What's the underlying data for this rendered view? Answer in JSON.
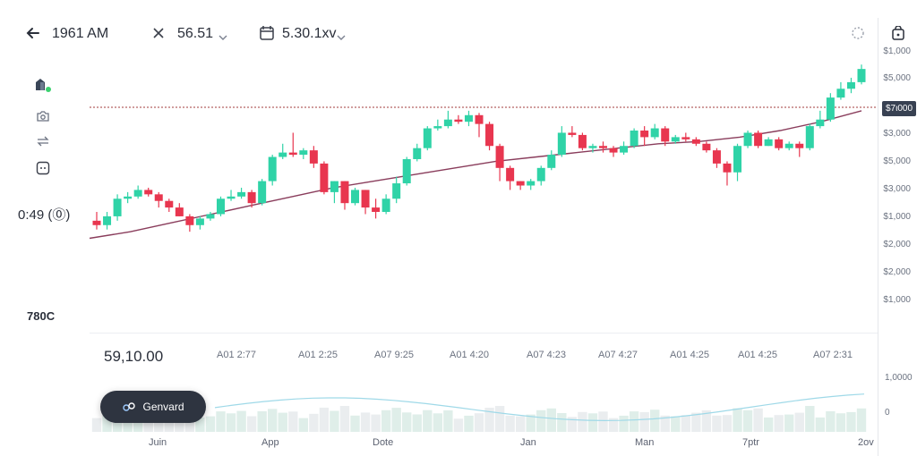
{
  "header": {
    "back_icon": "arrow-left-icon",
    "time": "1961 AM",
    "close_icon": "close-icon",
    "value": "56.51",
    "calendar_icon": "calendar-icon",
    "range": "5.30.1xv",
    "chevron_icon": "chevron-down-icon",
    "bag_icon": "bag-icon",
    "loading_icon": "spinner-icon"
  },
  "sidebar": {
    "icons": [
      "chart-icon",
      "camera-icon",
      "swap-icon",
      "square-icon"
    ],
    "timer": "0:49 (⓪)",
    "bottom_label": "780C"
  },
  "chart": {
    "reference_label": "$7ι000",
    "price_labels": [
      "$1,000",
      "$5,000",
      "$3,000",
      "$5,000",
      "$3,000",
      "$1,000",
      "$2,000",
      "$2,000",
      "$1,000"
    ],
    "summary_value": "59,10.00",
    "time_labels": [
      "A01 2:77",
      "A01 2:25",
      "A07 9:25",
      "A01 4:20",
      "A07 4:23",
      "A07 4:27",
      "A01 4:25",
      "A01 4:25",
      "A07 2:31"
    ],
    "volume_labels": [
      "1,0000",
      "0"
    ],
    "month_labels": [
      "Juin",
      "App",
      "Dote",
      "Jan",
      "Man",
      "7ptr",
      "2ov"
    ],
    "colors": {
      "up": "#2fd3a7",
      "down": "#e8364f",
      "ma": "#8a3d5c",
      "reference": "#a23b3b"
    }
  },
  "chart_data": {
    "type": "candlestick",
    "candles": [
      [
        2.3,
        2.2,
        2.5,
        2.1
      ],
      [
        2.2,
        2.4,
        2.5,
        2.1
      ],
      [
        2.4,
        2.8,
        2.9,
        2.3
      ],
      [
        2.8,
        2.85,
        2.95,
        2.7
      ],
      [
        2.85,
        3.0,
        3.1,
        2.8
      ],
      [
        3.0,
        2.9,
        3.05,
        2.85
      ],
      [
        2.9,
        2.75,
        2.95,
        2.6
      ],
      [
        2.75,
        2.6,
        2.8,
        2.5
      ],
      [
        2.6,
        2.4,
        2.7,
        2.4
      ],
      [
        2.4,
        2.2,
        2.45,
        2.05
      ],
      [
        2.2,
        2.35,
        2.4,
        2.1
      ],
      [
        2.35,
        2.45,
        2.5,
        2.3
      ],
      [
        2.45,
        2.8,
        2.85,
        2.4
      ],
      [
        2.8,
        2.85,
        3.0,
        2.75
      ],
      [
        2.85,
        2.95,
        3.05,
        2.8
      ],
      [
        2.95,
        2.7,
        3.0,
        2.6
      ],
      [
        2.7,
        3.2,
        3.25,
        2.65
      ],
      [
        3.2,
        3.75,
        3.8,
        3.1
      ],
      [
        3.75,
        3.85,
        4.05,
        3.7
      ],
      [
        3.85,
        3.8,
        4.3,
        3.75
      ],
      [
        3.8,
        3.9,
        3.95,
        3.7
      ],
      [
        3.9,
        3.6,
        4.0,
        3.5
      ],
      [
        3.6,
        2.95,
        3.65,
        2.9
      ],
      [
        2.95,
        3.2,
        3.2,
        2.7
      ],
      [
        3.2,
        2.7,
        3.2,
        2.55
      ],
      [
        2.7,
        3.0,
        3.05,
        2.65
      ],
      [
        3.0,
        2.6,
        3.0,
        2.45
      ],
      [
        2.6,
        2.5,
        2.8,
        2.35
      ],
      [
        2.5,
        2.8,
        2.9,
        2.45
      ],
      [
        2.8,
        3.15,
        3.3,
        2.7
      ],
      [
        3.15,
        3.7,
        3.75,
        3.1
      ],
      [
        3.7,
        3.95,
        4.05,
        3.65
      ],
      [
        3.95,
        4.4,
        4.45,
        3.9
      ],
      [
        4.4,
        4.45,
        4.6,
        4.35
      ],
      [
        4.45,
        4.6,
        4.8,
        4.4
      ],
      [
        4.6,
        4.55,
        4.7,
        4.5
      ],
      [
        4.55,
        4.7,
        4.8,
        4.45
      ],
      [
        4.7,
        4.5,
        4.75,
        4.2
      ],
      [
        4.5,
        4.0,
        4.55,
        3.9
      ],
      [
        4.0,
        3.5,
        4.05,
        3.2
      ],
      [
        3.5,
        3.2,
        3.55,
        3.0
      ],
      [
        3.2,
        3.1,
        3.2,
        3.0
      ],
      [
        3.1,
        3.2,
        3.25,
        3.0
      ],
      [
        3.2,
        3.5,
        3.55,
        3.1
      ],
      [
        3.5,
        3.8,
        3.9,
        3.45
      ],
      [
        3.8,
        4.3,
        4.45,
        3.75
      ],
      [
        4.3,
        4.25,
        4.45,
        4.2
      ],
      [
        4.25,
        3.95,
        4.3,
        3.9
      ],
      [
        3.95,
        4.0,
        4.05,
        3.85
      ],
      [
        4.0,
        3.95,
        4.1,
        3.85
      ],
      [
        3.95,
        3.85,
        4.0,
        3.75
      ],
      [
        3.85,
        4.0,
        4.1,
        3.8
      ],
      [
        4.0,
        4.35,
        4.4,
        3.95
      ],
      [
        4.35,
        4.2,
        4.45,
        4.0
      ],
      [
        4.2,
        4.4,
        4.5,
        4.15
      ],
      [
        4.4,
        4.1,
        4.45,
        4.0
      ],
      [
        4.1,
        4.2,
        4.25,
        4.05
      ],
      [
        4.2,
        4.15,
        4.3,
        4.1
      ],
      [
        4.15,
        4.05,
        4.2,
        4.0
      ],
      [
        4.05,
        3.9,
        4.1,
        3.85
      ],
      [
        3.9,
        3.6,
        3.95,
        3.5
      ],
      [
        3.6,
        3.4,
        3.65,
        3.1
      ],
      [
        3.4,
        4.0,
        4.05,
        3.2
      ],
      [
        4.0,
        4.3,
        4.35,
        3.95
      ],
      [
        4.3,
        4.0,
        4.35,
        3.95
      ],
      [
        4.0,
        4.15,
        4.2,
        4.0
      ],
      [
        4.15,
        3.95,
        4.2,
        3.9
      ],
      [
        3.95,
        4.05,
        4.1,
        3.9
      ],
      [
        4.05,
        3.95,
        4.1,
        3.75
      ],
      [
        3.95,
        4.45,
        4.5,
        3.9
      ],
      [
        4.45,
        4.6,
        4.8,
        4.4
      ],
      [
        4.6,
        5.1,
        5.2,
        4.55
      ],
      [
        5.1,
        5.3,
        5.45,
        5.05
      ],
      [
        5.3,
        5.45,
        5.55,
        5.2
      ],
      [
        5.45,
        5.75,
        5.85,
        5.4
      ]
    ],
    "moving_average": [
      1.9,
      2.05,
      2.25,
      2.45,
      2.65,
      2.85,
      3.05,
      3.2,
      3.35,
      3.5,
      3.65,
      3.75,
      3.85,
      3.95,
      4.05,
      4.1,
      4.2,
      4.35,
      4.55,
      4.8
    ]
  }
}
